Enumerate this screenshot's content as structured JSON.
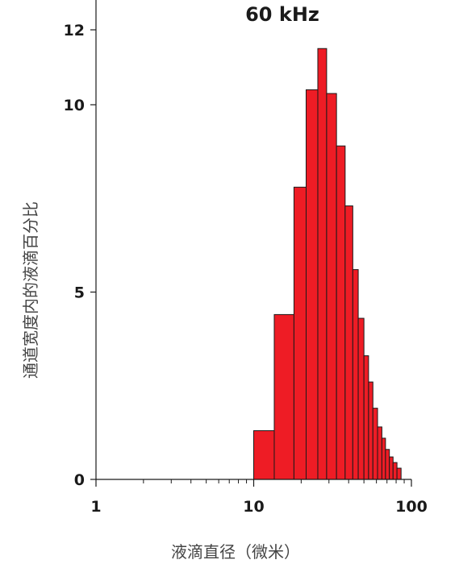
{
  "chart_data": {
    "type": "bar",
    "title": "60 kHz",
    "xlabel": "液滴直径（微米）",
    "ylabel": "通道宽度内的液滴百分比",
    "x_scale": "log",
    "xlim": [
      1,
      100
    ],
    "ylim": [
      0,
      12
    ],
    "x_ticks": [
      1,
      10,
      100
    ],
    "x_tick_labels": [
      "1",
      "10",
      "100"
    ],
    "y_ticks": [
      0,
      5,
      10,
      12
    ],
    "y_tick_labels": [
      "0",
      "5",
      "10",
      "12"
    ],
    "bar_color": "#ee1c25",
    "bins": [
      {
        "from": 10,
        "to": 13.5,
        "value": 1.3
      },
      {
        "from": 13.5,
        "to": 18,
        "value": 4.4
      },
      {
        "from": 18,
        "to": 21.5,
        "value": 7.8
      },
      {
        "from": 21.5,
        "to": 25.5,
        "value": 10.4
      },
      {
        "from": 25.5,
        "to": 29,
        "value": 11.5
      },
      {
        "from": 29,
        "to": 33.5,
        "value": 10.3
      },
      {
        "from": 33.5,
        "to": 38,
        "value": 8.9
      },
      {
        "from": 38,
        "to": 42.5,
        "value": 7.3
      },
      {
        "from": 42.5,
        "to": 46,
        "value": 5.6
      },
      {
        "from": 46,
        "to": 50,
        "value": 4.3
      },
      {
        "from": 50,
        "to": 53.5,
        "value": 3.3
      },
      {
        "from": 53.5,
        "to": 57,
        "value": 2.6
      },
      {
        "from": 57,
        "to": 61,
        "value": 1.9
      },
      {
        "from": 61,
        "to": 65,
        "value": 1.4
      },
      {
        "from": 65,
        "to": 68.5,
        "value": 1.1
      },
      {
        "from": 68.5,
        "to": 72.5,
        "value": 0.8
      },
      {
        "from": 72.5,
        "to": 76.5,
        "value": 0.6
      },
      {
        "from": 76.5,
        "to": 81,
        "value": 0.45
      },
      {
        "from": 81,
        "to": 86,
        "value": 0.3
      }
    ]
  }
}
